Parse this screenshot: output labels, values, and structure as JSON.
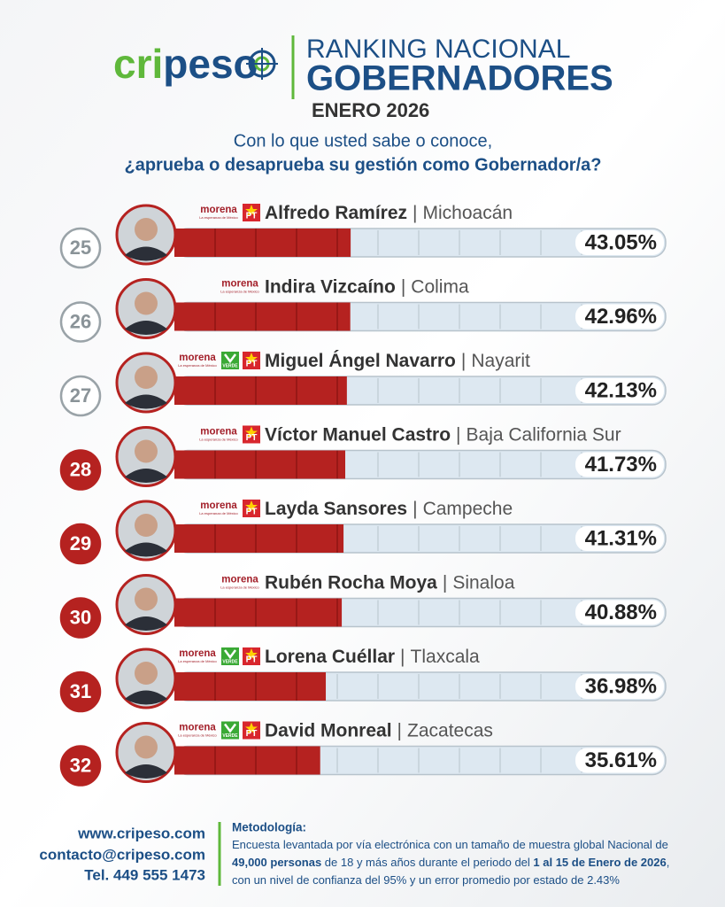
{
  "header": {
    "logo_a": "cri",
    "logo_b": "peso",
    "title_1": "RANKING NACIONAL",
    "title_2": "GOBERNADORES",
    "date": "ENERO 2026"
  },
  "question": {
    "line_1": "Con lo que usted sabe o conoce,",
    "line_2": "¿aprueba o desaprueba su gestión como Gobernador/a?"
  },
  "party_labels": {
    "morena": "morena",
    "morena_tagline": "La esperanza de México",
    "pt": "PT",
    "verde": "VERDE"
  },
  "separator": "|",
  "bar_xlim": [
    0,
    120
  ],
  "rows": [
    {
      "rank": 25,
      "rank_color": "gray",
      "parties": [
        "morena",
        "pt"
      ],
      "name": "Alfredo Ramírez",
      "state": "Michoacán",
      "value": 43.05,
      "value_label": "43.05%"
    },
    {
      "rank": 26,
      "rank_color": "gray",
      "parties": [
        "morena"
      ],
      "name": "Indira Vizcaíno",
      "state": "Colima",
      "value": 42.96,
      "value_label": "42.96%"
    },
    {
      "rank": 27,
      "rank_color": "gray",
      "parties": [
        "morena",
        "verde",
        "pt"
      ],
      "name": "Miguel Ángel Navarro",
      "state": "Nayarit",
      "value": 42.13,
      "value_label": "42.13%"
    },
    {
      "rank": 28,
      "rank_color": "red",
      "parties": [
        "morena",
        "pt"
      ],
      "name": "Víctor Manuel Castro",
      "state": "Baja California Sur",
      "value": 41.73,
      "value_label": "41.73%"
    },
    {
      "rank": 29,
      "rank_color": "red",
      "parties": [
        "morena",
        "pt"
      ],
      "name": "Layda Sansores",
      "state": "Campeche",
      "value": 41.31,
      "value_label": "41.31%"
    },
    {
      "rank": 30,
      "rank_color": "red",
      "parties": [
        "morena"
      ],
      "name": "Rubén Rocha Moya",
      "state": "Sinaloa",
      "value": 40.88,
      "value_label": "40.88%"
    },
    {
      "rank": 31,
      "rank_color": "red",
      "parties": [
        "morena",
        "verde",
        "pt"
      ],
      "name": "Lorena Cuéllar",
      "state": "Tlaxcala",
      "value": 36.98,
      "value_label": "36.98%"
    },
    {
      "rank": 32,
      "rank_color": "red",
      "parties": [
        "morena",
        "verde",
        "pt"
      ],
      "name": "David Monreal",
      "state": "Zacatecas",
      "value": 35.61,
      "value_label": "35.61%"
    }
  ],
  "footer": {
    "web": "www.cripeso.com",
    "email": "contacto@cripeso.com",
    "phone": "Tel. 449 555 1473"
  },
  "methodology": {
    "title": "Metodología:",
    "lines": [
      [
        {
          "t": "Encuesta levantada por vía electrónica con un tamaño de muestra global Nacional de",
          "b": false
        }
      ],
      [
        {
          "t": "49,000 personas",
          "b": true
        },
        {
          "t": " de 18 y más años durante el periodo del ",
          "b": false
        },
        {
          "t": "1 al 15 de Enero de 2026",
          "b": true
        },
        {
          "t": ",",
          "b": false
        }
      ],
      [
        {
          "t": "con un nivel de confianza del 95% y un error promedio por estado de 2.43%",
          "b": false
        }
      ]
    ]
  }
}
